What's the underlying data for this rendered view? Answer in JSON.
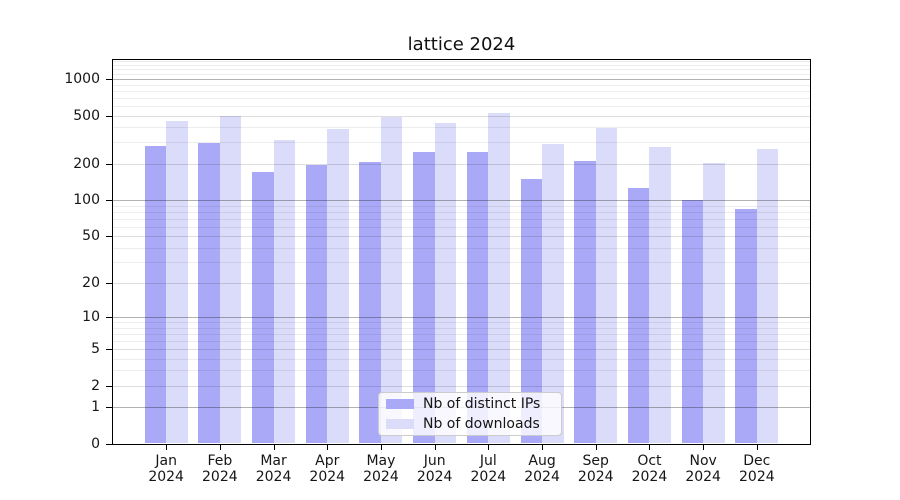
{
  "figure": {
    "title": "lattice 2024"
  },
  "chart_data": {
    "type": "bar",
    "title": "lattice 2024",
    "categories": [
      "Jan",
      "Feb",
      "Mar",
      "Apr",
      "May",
      "Jun",
      "Jul",
      "Aug",
      "Sep",
      "Oct",
      "Nov",
      "Dec"
    ],
    "category_year": "2024",
    "series": [
      {
        "name": "Nb of distinct IPs",
        "color": "#a9a9f7",
        "values": [
          280,
          295,
          172,
          195,
          205,
          248,
          252,
          150,
          212,
          125,
          100,
          84
        ]
      },
      {
        "name": "Nb of downloads",
        "color": "#dbdbfa",
        "values": [
          450,
          500,
          315,
          390,
          490,
          435,
          520,
          290,
          392,
          277,
          203,
          265
        ]
      }
    ],
    "xlabel": "",
    "ylabel": "",
    "y_ticks": [
      0,
      1,
      2,
      5,
      10,
      20,
      50,
      100,
      200,
      500,
      1000
    ],
    "y_major_gridlines": [
      1,
      10,
      100,
      1000
    ],
    "y_scale": "log10(value+1)",
    "ylim": [
      0,
      1434
    ],
    "grid": true,
    "legend_position": "bottom-center-inside"
  },
  "style": {
    "background": "#ffffff",
    "axis_color": "#000000",
    "text_color": "#161616",
    "bar_dark": "#a9a9f7",
    "bar_light": "#dbdbfa",
    "grid_major_rgba": "rgba(0,0,0,0.30)",
    "grid_mid_rgba": "rgba(0,0,0,0.13)",
    "grid_minor_rgba": "rgba(0,0,0,0.07)"
  }
}
